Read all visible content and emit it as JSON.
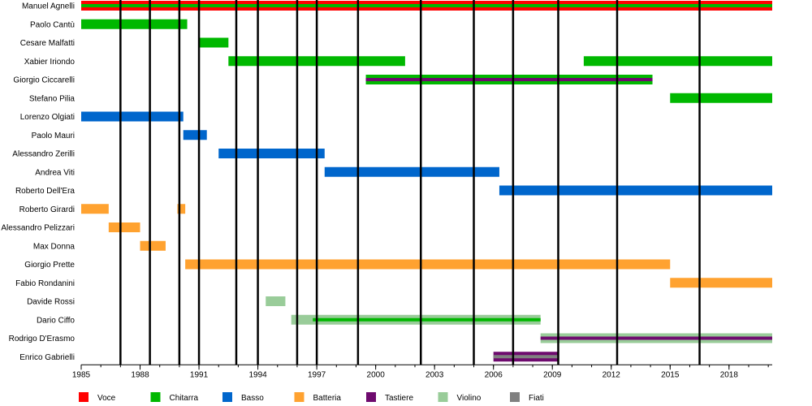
{
  "chart_data": {
    "type": "timeline",
    "title": "",
    "xlabel": "",
    "ylabel": "",
    "xlim": [
      1985,
      2020.2
    ],
    "x_ticks": [
      1985,
      1988,
      1991,
      1994,
      1997,
      2000,
      2003,
      2006,
      2009,
      2012,
      2015,
      2018
    ],
    "album_lines": [
      1987.0,
      1988.5,
      1990.0,
      1991.0,
      1992.9,
      1994.0,
      1996.0,
      1997.0,
      1999.1,
      2002.3,
      2005.0,
      2007.0,
      2009.3,
      2012.3,
      2016.5
    ],
    "legend_position": "bottom",
    "roles": [
      {
        "key": "voce",
        "label": "Voce",
        "color": "#ff0000"
      },
      {
        "key": "chitarra",
        "label": "Chitarra",
        "color": "#00b800"
      },
      {
        "key": "basso",
        "label": "Basso",
        "color": "#0066cc"
      },
      {
        "key": "batteria",
        "label": "Batteria",
        "color": "#ffa230"
      },
      {
        "key": "tastiere",
        "label": "Tastiere",
        "color": "#6e0a6e"
      },
      {
        "key": "violino",
        "label": "Violino",
        "color": "#99cc99"
      },
      {
        "key": "fiati",
        "label": "Fiati",
        "color": "#808080"
      }
    ],
    "members": [
      {
        "name": "Manuel Agnelli",
        "periods": [
          {
            "start": 1985,
            "end": 2020.2,
            "role": "voce"
          },
          {
            "start": 1985,
            "end": 2020.2,
            "role": "chitarra",
            "thin": true
          }
        ]
      },
      {
        "name": "Paolo Cantù",
        "periods": [
          {
            "start": 1985,
            "end": 1990.4,
            "role": "chitarra"
          }
        ]
      },
      {
        "name": "Cesare Malfatti",
        "periods": [
          {
            "start": 1991,
            "end": 1992.5,
            "role": "chitarra"
          }
        ]
      },
      {
        "name": "Xabier Iriondo",
        "periods": [
          {
            "start": 1992.5,
            "end": 2001.5,
            "role": "chitarra"
          },
          {
            "start": 2010.6,
            "end": 2020.2,
            "role": "chitarra"
          }
        ]
      },
      {
        "name": "Giorgio Ciccarelli",
        "periods": [
          {
            "start": 1999.5,
            "end": 2014.1,
            "role": "chitarra"
          },
          {
            "start": 1999.5,
            "end": 2014.1,
            "role": "tastiere",
            "thin": true
          }
        ]
      },
      {
        "name": "Stefano Pilia",
        "periods": [
          {
            "start": 2015.0,
            "end": 2020.2,
            "role": "chitarra"
          }
        ]
      },
      {
        "name": "Lorenzo Olgiati",
        "periods": [
          {
            "start": 1985,
            "end": 1990.2,
            "role": "basso"
          }
        ]
      },
      {
        "name": "Paolo Mauri",
        "periods": [
          {
            "start": 1990.2,
            "end": 1991.4,
            "role": "basso"
          }
        ]
      },
      {
        "name": "Alessandro Zerilli",
        "periods": [
          {
            "start": 1992.0,
            "end": 1997.4,
            "role": "basso"
          }
        ]
      },
      {
        "name": "Andrea Viti",
        "periods": [
          {
            "start": 1997.4,
            "end": 2006.3,
            "role": "basso"
          }
        ]
      },
      {
        "name": "Roberto Dell'Era",
        "periods": [
          {
            "start": 2006.3,
            "end": 2020.2,
            "role": "basso"
          }
        ]
      },
      {
        "name": "Roberto Girardi",
        "periods": [
          {
            "start": 1985,
            "end": 1986.4,
            "role": "batteria"
          },
          {
            "start": 1989.9,
            "end": 1990.3,
            "role": "batteria"
          }
        ]
      },
      {
        "name": "Alessandro Pelizzari",
        "periods": [
          {
            "start": 1986.4,
            "end": 1988.0,
            "role": "batteria"
          }
        ]
      },
      {
        "name": "Max Donna",
        "periods": [
          {
            "start": 1988.0,
            "end": 1989.3,
            "role": "batteria"
          }
        ]
      },
      {
        "name": "Giorgio Prette",
        "periods": [
          {
            "start": 1990.3,
            "end": 2015.0,
            "role": "batteria"
          }
        ]
      },
      {
        "name": "Fabio Rondanini",
        "periods": [
          {
            "start": 2015.0,
            "end": 2020.2,
            "role": "batteria"
          }
        ]
      },
      {
        "name": "Davide Rossi",
        "periods": [
          {
            "start": 1994.4,
            "end": 1995.4,
            "role": "violino"
          }
        ]
      },
      {
        "name": "Dario Ciffo",
        "periods": [
          {
            "start": 1995.7,
            "end": 2008.4,
            "role": "violino"
          },
          {
            "start": 1996.8,
            "end": 2008.4,
            "role": "chitarra",
            "thin": true
          }
        ]
      },
      {
        "name": "Rodrigo D'Erasmo",
        "periods": [
          {
            "start": 2008.4,
            "end": 2020.2,
            "role": "violino"
          },
          {
            "start": 2008.4,
            "end": 2020.2,
            "role": "tastiere",
            "thin": true
          }
        ]
      },
      {
        "name": "Enrico Gabrielli",
        "periods": [
          {
            "start": 2006.0,
            "end": 2009.3,
            "role": "tastiere"
          },
          {
            "start": 2006.0,
            "end": 2009.3,
            "role": "fiati",
            "thin": true
          }
        ]
      }
    ]
  }
}
